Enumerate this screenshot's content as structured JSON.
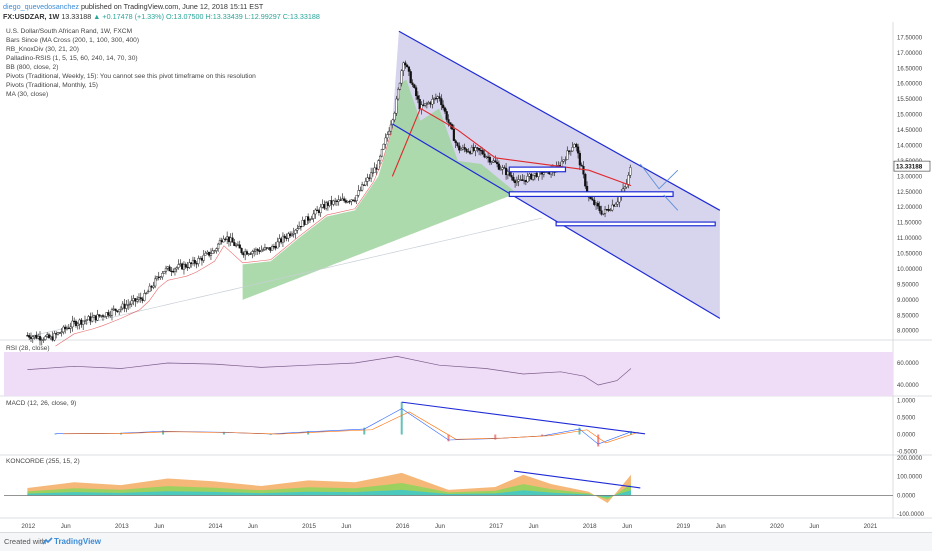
{
  "header": {
    "author": "diego_quevedosanchez",
    "published_on": "published on TradingView.com, June 12, 2018 15:11 EST",
    "symbol": "FX:USDZAR, 1W",
    "last": "13.33188",
    "change": "+0.17478 (+1.33%)",
    "open": "O:13.07500",
    "high": "H:13.33439",
    "low": "L:12.99297",
    "close": "C:13.33188"
  },
  "indicator_labels": [
    "U.S. Dollar/South African Rand, 1W, FXCM",
    "Bars Since (MA Cross (200, 1, 100, 300, 400)",
    "RB_KnoxDiv (30, 21, 20)",
    "Palladino-RSIS (1, 5, 15, 60, 240, 14, 70, 30)",
    "BB (800, close, 2)",
    "Pivots (Traditional, Weekly, 15): You cannot see this pivot timeframe on this resolution",
    "Pivots (Traditional, Monthly, 15)",
    "MA (30, close)"
  ],
  "rsi_label": "RSI (28, close)",
  "macd_label": "MACD (12, 26, close, 9)",
  "concorde_label": "KONCORDE (255, 15, 2)",
  "footer": {
    "created_with": "Created with",
    "brand": "TradingView"
  },
  "colors": {
    "up": "#26a69a",
    "down": "#ef5350",
    "channel": "#1f2bd6",
    "channel_fill": "#c9c6e8",
    "ma": "#e0282c",
    "bb_fill": "#9fd39d",
    "rsi_bg": "#efdcf7",
    "rsi_line": "#7a5c8a",
    "price_badge": "#ffffff"
  },
  "chart_data": [
    {
      "type": "candlestick",
      "title": "U.S. Dollar/South African Rand, 1W, FXCM",
      "x_ticks": [
        "2012",
        "Jun",
        "2013",
        "Jun",
        "2014",
        "Jun",
        "2015",
        "Jun",
        "2016",
        "Jun",
        "2017",
        "Jun",
        "2018",
        "Jun",
        "2019",
        "Jun",
        "2020",
        "Jun",
        "2021"
      ],
      "y_ticks": [
        "17.50000",
        "17.00000",
        "16.50000",
        "16.00000",
        "15.50000",
        "15.00000",
        "14.50000",
        "14.00000",
        "13.50000",
        "13.00000",
        "12.50000",
        "12.00000",
        "11.50000",
        "11.00000",
        "10.50000",
        "10.00000",
        "9.50000",
        "9.00000",
        "8.50000",
        "8.00000"
      ],
      "last_price_label": "13.33188",
      "ylim": [
        7.7,
        18.0
      ],
      "price_path": [
        {
          "t": 2012.0,
          "p": 7.85
        },
        {
          "t": 2012.25,
          "p": 7.75
        },
        {
          "t": 2012.5,
          "p": 8.25
        },
        {
          "t": 2012.75,
          "p": 8.45
        },
        {
          "t": 2013.0,
          "p": 8.75
        },
        {
          "t": 2013.25,
          "p": 9.1
        },
        {
          "t": 2013.45,
          "p": 9.95
        },
        {
          "t": 2013.75,
          "p": 10.15
        },
        {
          "t": 2014.0,
          "p": 10.6
        },
        {
          "t": 2014.1,
          "p": 11.1
        },
        {
          "t": 2014.3,
          "p": 10.55
        },
        {
          "t": 2014.6,
          "p": 10.65
        },
        {
          "t": 2014.9,
          "p": 11.4
        },
        {
          "t": 2015.2,
          "p": 12.1
        },
        {
          "t": 2015.5,
          "p": 12.3
        },
        {
          "t": 2015.75,
          "p": 13.4
        },
        {
          "t": 2015.93,
          "p": 15.2
        },
        {
          "t": 2016.02,
          "p": 16.8
        },
        {
          "t": 2016.2,
          "p": 15.2
        },
        {
          "t": 2016.4,
          "p": 15.6
        },
        {
          "t": 2016.6,
          "p": 13.9
        },
        {
          "t": 2016.85,
          "p": 13.8
        },
        {
          "t": 2017.05,
          "p": 13.3
        },
        {
          "t": 2017.25,
          "p": 12.8
        },
        {
          "t": 2017.45,
          "p": 13.1
        },
        {
          "t": 2017.65,
          "p": 13.2
        },
        {
          "t": 2017.85,
          "p": 14.1
        },
        {
          "t": 2018.0,
          "p": 12.3
        },
        {
          "t": 2018.15,
          "p": 11.8
        },
        {
          "t": 2018.3,
          "p": 12.2
        },
        {
          "t": 2018.4,
          "p": 12.7
        },
        {
          "t": 2018.45,
          "p": 13.33
        }
      ],
      "series": [
        {
          "name": "MA (30, close)",
          "type": "line",
          "values": [
            {
              "t": 2015.9,
              "p": 13.0
            },
            {
              "t": 2016.2,
              "p": 15.2
            },
            {
              "t": 2016.6,
              "p": 14.5
            },
            {
              "t": 2017.0,
              "p": 13.6
            },
            {
              "t": 2017.5,
              "p": 13.4
            },
            {
              "t": 2018.0,
              "p": 13.2
            },
            {
              "t": 2018.45,
              "p": 12.7
            }
          ]
        }
      ],
      "channel": {
        "upper": [
          {
            "t": 2015.97,
            "p": 17.7
          },
          {
            "t": 2019.4,
            "p": 11.9
          }
        ],
        "lower": [
          {
            "t": 2015.9,
            "p": 14.7
          },
          {
            "t": 2019.4,
            "p": 8.4
          }
        ]
      },
      "zones": [
        {
          "t0": 2017.15,
          "t1": 2017.75,
          "p_low": 13.15,
          "p_high": 13.3
        },
        {
          "t0": 2017.15,
          "t1": 2018.9,
          "p_low": 12.35,
          "p_high": 12.5
        },
        {
          "t0": 2017.65,
          "t1": 2019.35,
          "p_low": 11.4,
          "p_high": 11.52
        }
      ]
    },
    {
      "type": "line",
      "name": "RSI (28, close)",
      "y_ticks": [
        "60.0000",
        "40.0000"
      ],
      "ylim": [
        30,
        80
      ],
      "values": [
        {
          "t": 2012.0,
          "v": 54
        },
        {
          "t": 2012.5,
          "v": 57
        },
        {
          "t": 2013.0,
          "v": 55
        },
        {
          "t": 2013.5,
          "v": 60
        },
        {
          "t": 2014.0,
          "v": 59
        },
        {
          "t": 2014.5,
          "v": 56
        },
        {
          "t": 2015.0,
          "v": 58
        },
        {
          "t": 2015.5,
          "v": 60
        },
        {
          "t": 2015.95,
          "v": 66
        },
        {
          "t": 2016.4,
          "v": 58
        },
        {
          "t": 2016.9,
          "v": 55
        },
        {
          "t": 2017.3,
          "v": 50
        },
        {
          "t": 2017.7,
          "v": 52
        },
        {
          "t": 2017.95,
          "v": 48
        },
        {
          "t": 2018.1,
          "v": 40
        },
        {
          "t": 2018.3,
          "v": 44
        },
        {
          "t": 2018.45,
          "v": 55
        }
      ]
    },
    {
      "type": "bar",
      "name": "MACD (12, 26, close, 9)",
      "y_ticks": [
        "1.0000",
        "0.5000",
        "0.0000",
        "-0.5000"
      ],
      "ylim": [
        -0.6,
        1.1
      ],
      "trendline": [
        {
          "t": 2016.0,
          "v": 0.95
        },
        {
          "t": 2018.6,
          "v": 0.02
        }
      ],
      "values": [
        {
          "t": 2012.3,
          "v": 0.03
        },
        {
          "t": 2013.0,
          "v": 0.05
        },
        {
          "t": 2013.45,
          "v": 0.12
        },
        {
          "t": 2014.1,
          "v": 0.08
        },
        {
          "t": 2014.6,
          "v": 0.02
        },
        {
          "t": 2015.0,
          "v": 0.1
        },
        {
          "t": 2015.6,
          "v": 0.2
        },
        {
          "t": 2016.0,
          "v": 0.95
        },
        {
          "t": 2016.5,
          "v": -0.2
        },
        {
          "t": 2017.0,
          "v": -0.15
        },
        {
          "t": 2017.5,
          "v": -0.05
        },
        {
          "t": 2017.9,
          "v": 0.2
        },
        {
          "t": 2018.1,
          "v": -0.35
        },
        {
          "t": 2018.45,
          "v": 0.1
        }
      ]
    },
    {
      "type": "area",
      "name": "KONCORDE (255, 15, 2)",
      "y_ticks": [
        "200.0000",
        "100.0000",
        "0.0000",
        "-100.0000"
      ],
      "ylim": [
        -120,
        210
      ],
      "trendline": [
        {
          "t": 2017.2,
          "v": 130
        },
        {
          "t": 2018.55,
          "v": 40
        }
      ],
      "values": [
        {
          "t": 2012.0,
          "v": 40
        },
        {
          "t": 2012.5,
          "v": 70
        },
        {
          "t": 2013.0,
          "v": 55
        },
        {
          "t": 2013.5,
          "v": 90
        },
        {
          "t": 2014.0,
          "v": 75
        },
        {
          "t": 2014.5,
          "v": 50
        },
        {
          "t": 2015.0,
          "v": 80
        },
        {
          "t": 2015.5,
          "v": 70
        },
        {
          "t": 2016.0,
          "v": 120
        },
        {
          "t": 2016.5,
          "v": 30
        },
        {
          "t": 2017.0,
          "v": 45
        },
        {
          "t": 2017.3,
          "v": 110
        },
        {
          "t": 2017.6,
          "v": 60
        },
        {
          "t": 2018.0,
          "v": 20
        },
        {
          "t": 2018.2,
          "v": -40
        },
        {
          "t": 2018.45,
          "v": 110
        }
      ]
    }
  ]
}
